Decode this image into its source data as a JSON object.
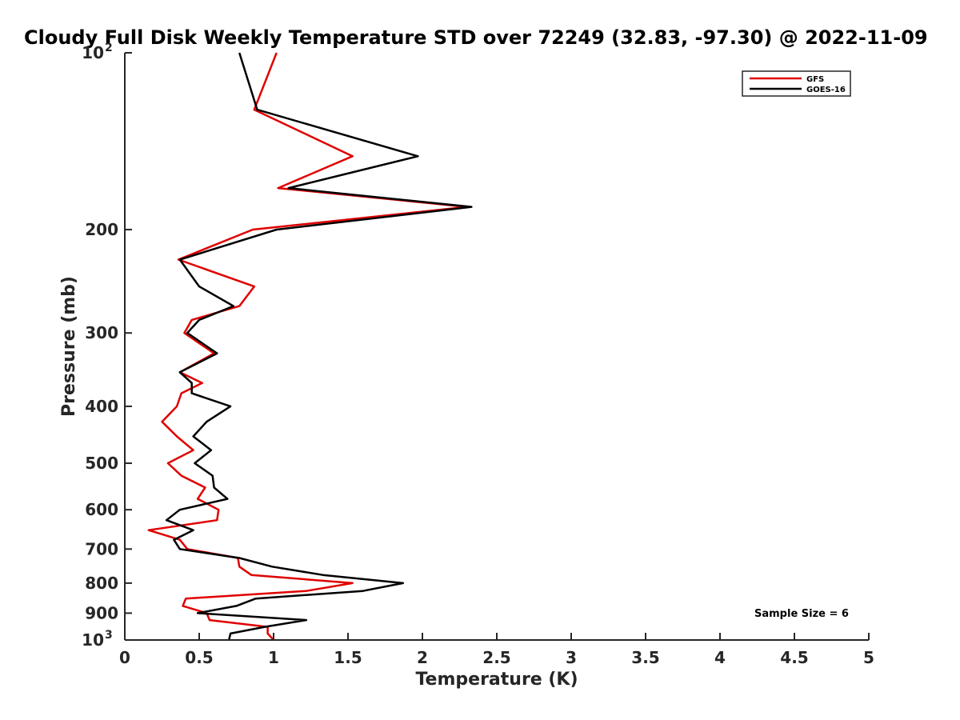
{
  "chart_data": {
    "type": "line",
    "title": "Cloudy Full Disk Weekly Temperature STD over 72249 (32.83, -97.30) @ 2022-11-09",
    "xlabel": "Temperature (K)",
    "ylabel": "Pressure (mb)",
    "xlim": [
      0,
      5
    ],
    "ylim": [
      100,
      1000
    ],
    "yscale": "log",
    "y_reversed": true,
    "grid": false,
    "legend_position": "top-right",
    "x_ticks": [
      "0",
      "0.5",
      "1",
      "1.5",
      "2",
      "2.5",
      "3",
      "3.5",
      "4",
      "4.5",
      "5"
    ],
    "y_ticks": [
      {
        "value": 100,
        "base": "10",
        "exp": "2"
      },
      {
        "value": 200,
        "label": "200"
      },
      {
        "value": 300,
        "label": "300"
      },
      {
        "value": 400,
        "label": "400"
      },
      {
        "value": 500,
        "label": "500"
      },
      {
        "value": 600,
        "label": "600"
      },
      {
        "value": 700,
        "label": "700"
      },
      {
        "value": 800,
        "label": "800"
      },
      {
        "value": 900,
        "label": "900"
      },
      {
        "value": 1000,
        "base": "10",
        "exp": "3"
      }
    ],
    "series": [
      {
        "name": "GFS",
        "color": "#e00000",
        "points": [
          [
            1.02,
            100
          ],
          [
            0.87,
            125
          ],
          [
            1.53,
            150
          ],
          [
            1.03,
            170
          ],
          [
            2.3,
            183
          ],
          [
            0.86,
            200
          ],
          [
            0.36,
            225
          ],
          [
            0.87,
            250
          ],
          [
            0.77,
            270
          ],
          [
            0.45,
            285
          ],
          [
            0.4,
            300
          ],
          [
            0.6,
            325
          ],
          [
            0.37,
            350
          ],
          [
            0.52,
            365
          ],
          [
            0.38,
            380
          ],
          [
            0.35,
            400
          ],
          [
            0.25,
            425
          ],
          [
            0.35,
            450
          ],
          [
            0.46,
            475
          ],
          [
            0.29,
            500
          ],
          [
            0.38,
            525
          ],
          [
            0.54,
            550
          ],
          [
            0.49,
            575
          ],
          [
            0.63,
            600
          ],
          [
            0.62,
            625
          ],
          [
            0.16,
            650
          ],
          [
            0.37,
            675
          ],
          [
            0.42,
            700
          ],
          [
            0.76,
            725
          ],
          [
            0.77,
            750
          ],
          [
            0.85,
            775
          ],
          [
            1.53,
            800
          ],
          [
            1.22,
            825
          ],
          [
            0.41,
            850
          ],
          [
            0.39,
            875
          ],
          [
            0.55,
            900
          ],
          [
            0.57,
            925
          ],
          [
            0.96,
            950
          ],
          [
            0.96,
            975
          ],
          [
            1.0,
            1000
          ]
        ]
      },
      {
        "name": "GOES-16",
        "color": "#000000",
        "points": [
          [
            0.77,
            100
          ],
          [
            0.89,
            125
          ],
          [
            1.97,
            150
          ],
          [
            1.1,
            170
          ],
          [
            2.33,
            183
          ],
          [
            1.02,
            200
          ],
          [
            0.37,
            225
          ],
          [
            0.5,
            250
          ],
          [
            0.73,
            270
          ],
          [
            0.5,
            285
          ],
          [
            0.42,
            300
          ],
          [
            0.62,
            325
          ],
          [
            0.37,
            350
          ],
          [
            0.45,
            365
          ],
          [
            0.45,
            380
          ],
          [
            0.71,
            400
          ],
          [
            0.55,
            425
          ],
          [
            0.46,
            450
          ],
          [
            0.58,
            475
          ],
          [
            0.47,
            500
          ],
          [
            0.59,
            525
          ],
          [
            0.6,
            550
          ],
          [
            0.69,
            575
          ],
          [
            0.37,
            600
          ],
          [
            0.28,
            625
          ],
          [
            0.46,
            650
          ],
          [
            0.33,
            675
          ],
          [
            0.37,
            700
          ],
          [
            0.77,
            725
          ],
          [
            0.99,
            750
          ],
          [
            1.33,
            775
          ],
          [
            1.87,
            800
          ],
          [
            1.6,
            825
          ],
          [
            0.88,
            850
          ],
          [
            0.75,
            875
          ],
          [
            0.49,
            900
          ],
          [
            1.22,
            925
          ],
          [
            0.94,
            950
          ],
          [
            0.71,
            975
          ],
          [
            0.7,
            1000
          ]
        ]
      }
    ],
    "legend": [
      {
        "label": "GFS",
        "color": "#e00000"
      },
      {
        "label": "GOES-16",
        "color": "#000000"
      }
    ],
    "annotation": "Sample Size = 6"
  }
}
